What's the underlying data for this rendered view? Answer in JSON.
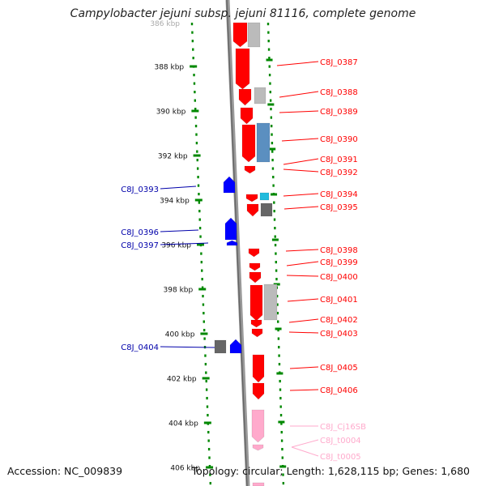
{
  "title": "Campylobacter jejuni subsp. jejuni 81116, complete genome",
  "accession": "Accession: NC_009839",
  "summary": "Topology: circular; Length: 1,628,115 bp; Genes: 1,680",
  "colors": {
    "forward_gene": "#ff0000",
    "reverse_gene": "#0000ff",
    "rna_gene": "#ffaacc",
    "grey_feature": "#bbbbbb",
    "dark_feature": "#666666",
    "blue_feature": "#5b8fc0",
    "cyan_feature": "#22bbdd",
    "ruler_tick": "#008800",
    "backbone": "#888888"
  },
  "ruler": {
    "start_label": "386 kbp",
    "ticks": [
      "388 kbp",
      "390 kbp",
      "392 kbp",
      "394 kbp",
      "396 kbp",
      "398 kbp",
      "400 kbp",
      "402 kbp",
      "404 kbp",
      "406 kbp"
    ]
  },
  "right_labels": [
    {
      "text": "C8J_0387",
      "color": "#ff0000"
    },
    {
      "text": "C8J_0388",
      "color": "#ff0000"
    },
    {
      "text": "C8J_0389",
      "color": "#ff0000"
    },
    {
      "text": "C8J_0390",
      "color": "#ff0000"
    },
    {
      "text": "C8J_0391",
      "color": "#ff0000"
    },
    {
      "text": "C8J_0392",
      "color": "#ff0000"
    },
    {
      "text": "C8J_0394",
      "color": "#ff0000"
    },
    {
      "text": "C8J_0395",
      "color": "#ff0000"
    },
    {
      "text": "C8J_0398",
      "color": "#ff0000"
    },
    {
      "text": "C8J_0399",
      "color": "#ff0000"
    },
    {
      "text": "C8J_0400",
      "color": "#ff0000"
    },
    {
      "text": "C8J_0401",
      "color": "#ff0000"
    },
    {
      "text": "C8J_0402",
      "color": "#ff0000"
    },
    {
      "text": "C8J_0403",
      "color": "#ff0000"
    },
    {
      "text": "C8J_0405",
      "color": "#ff0000"
    },
    {
      "text": "C8J_0406",
      "color": "#ff0000"
    },
    {
      "text": "C8J_Cj16SB",
      "color": "#ffaacc"
    },
    {
      "text": "C8J_t0004",
      "color": "#ffaacc"
    },
    {
      "text": "C8J_t0005",
      "color": "#ffaacc"
    }
  ],
  "left_labels": [
    {
      "text": "C8J_0393",
      "color": "#0000aa"
    },
    {
      "text": "C8J_0396",
      "color": "#0000aa"
    },
    {
      "text": "C8J_0397",
      "color": "#0000aa"
    },
    {
      "text": "C8J_0404",
      "color": "#0000aa"
    }
  ]
}
